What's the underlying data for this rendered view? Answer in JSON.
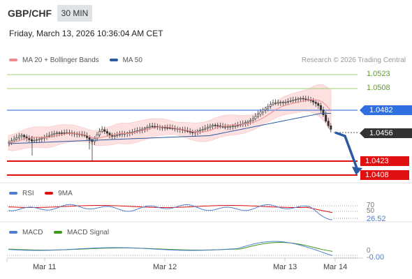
{
  "header": {
    "pair": "GBP/CHF",
    "timeframe": "30 MIN",
    "datetime": "Friday, March 13, 2026 10:36:04 AM CET"
  },
  "legend": {
    "items": [
      {
        "label": "MA 20 + Bollinger Bands",
        "color": "#f28b8b"
      },
      {
        "label": "MA 50",
        "color": "#2c5aa0"
      }
    ],
    "credit": "Research © 2026 Trading Central"
  },
  "levels": {
    "resistance_2": {
      "value": "1.0523",
      "color": "#7fc24a"
    },
    "resistance_1": {
      "value": "1.0508",
      "color": "#7fc24a"
    },
    "pivot": {
      "value": "1.0482",
      "color": "#2f6fe0"
    },
    "last_price": {
      "value": "1.0456",
      "color": "#333333"
    },
    "support_1": {
      "value": "1.0423",
      "color": "#e01010"
    },
    "support_2": {
      "value": "1.0408",
      "color": "#e01010"
    }
  },
  "rsi_panel": {
    "legend": [
      {
        "label": "RSI",
        "color": "#4f7fd0"
      },
      {
        "label": "9MA",
        "color": "#e01010"
      }
    ],
    "level_70": "70",
    "level_50": "50",
    "value": "26.52"
  },
  "macd_panel": {
    "legend": [
      {
        "label": "MACD",
        "color": "#4f7fd0"
      },
      {
        "label": "MACD Signal",
        "color": "#3a9a1a"
      }
    ],
    "level_0": "0",
    "value": "-0.00"
  },
  "x_axis": {
    "labels": [
      "Mar 11",
      "Mar 12",
      "Mar 13",
      "Mar 14"
    ]
  }
}
